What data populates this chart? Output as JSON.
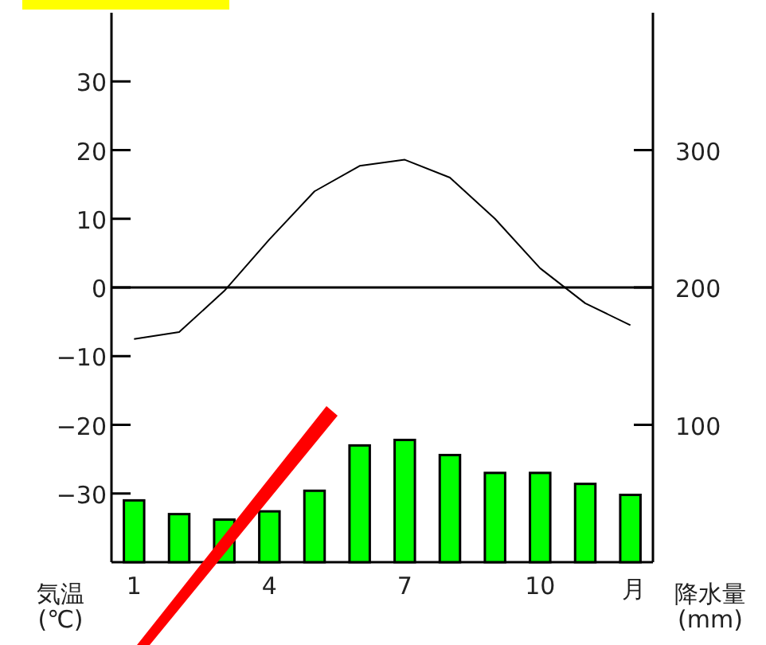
{
  "chart_data": {
    "type": "bar",
    "xlabel": "月",
    "ylabel": "気温\n(℃)",
    "y2label": "降水量\n(mm)",
    "categories": [
      "1",
      null,
      null,
      "4",
      null,
      null,
      "7",
      null,
      null,
      "10",
      null,
      null
    ],
    "series": [
      {
        "axis": "y2",
        "color": "#00ff00",
        "values": [
          45,
          35,
          31,
          37,
          52,
          85,
          89,
          78,
          65,
          65,
          57,
          49
        ]
      },
      {
        "type": "line",
        "color": "#000000",
        "values": [
          -7.5,
          -6.5,
          -0.5,
          7,
          14,
          17.7,
          18.6,
          16,
          10,
          2.8,
          -2.3,
          -5.5
        ]
      }
    ],
    "ylim": [
      -40,
      40
    ],
    "yticks": [
      -30,
      -20,
      -10,
      0,
      10,
      20,
      30
    ],
    "y2lim": [
      0,
      400
    ],
    "y2ticks": [
      100,
      200,
      300
    ],
    "ref_lines": [
      {
        "axis": "y",
        "value": 0,
        "color": "#000000"
      }
    ]
  }
}
